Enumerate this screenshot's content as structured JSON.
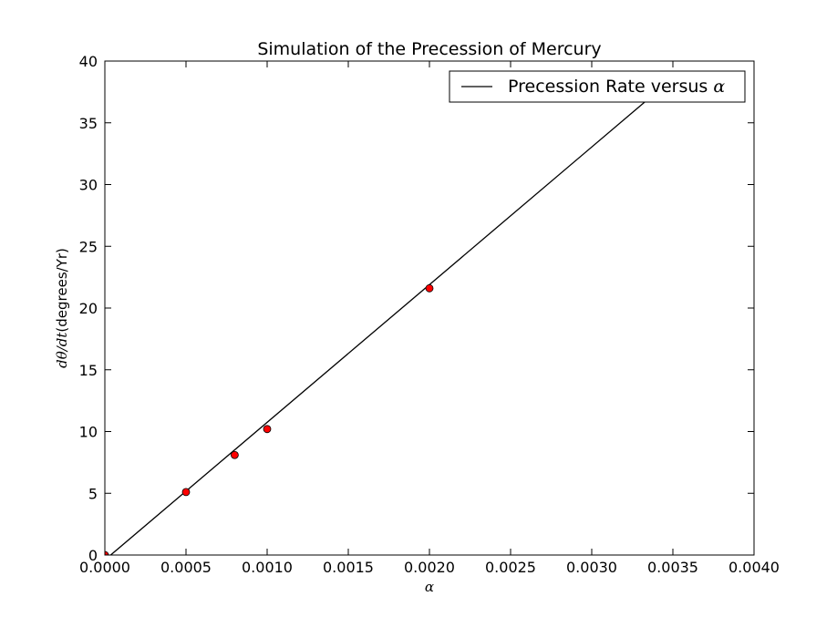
{
  "chart_data": {
    "type": "scatter",
    "title": "Simulation of the Precession of Mercury",
    "xlabel": "α",
    "ylabel": {
      "math": "dθ/dt",
      "unit": "(degrees/Yr)"
    },
    "xlim": [
      0,
      0.004
    ],
    "ylim": [
      0,
      40
    ],
    "x_ticks": [
      "0.0000",
      "0.0005",
      "0.0010",
      "0.0015",
      "0.0020",
      "0.0025",
      "0.0030",
      "0.0035",
      "0.0040"
    ],
    "y_ticks": [
      "0",
      "5",
      "10",
      "15",
      "20",
      "25",
      "30",
      "35",
      "40"
    ],
    "grid": false,
    "legend": {
      "placement": "top-right",
      "entries": [
        {
          "label_text": "Precession Rate versus ",
          "label_math": "α",
          "color": "#000000",
          "marker": "line"
        }
      ]
    },
    "series": [
      {
        "name": "Precession Rate versus α",
        "kind": "line",
        "color": "#000000",
        "x": [
          0.0,
          0.0034
        ],
        "y": [
          -0.4,
          37.5
        ]
      },
      {
        "kind": "points",
        "color": "#ff0000",
        "x": [
          0.0,
          0.0005,
          0.0008,
          0.001,
          0.002
        ],
        "y": [
          0.0,
          5.1,
          8.1,
          10.2,
          21.6
        ]
      }
    ]
  }
}
